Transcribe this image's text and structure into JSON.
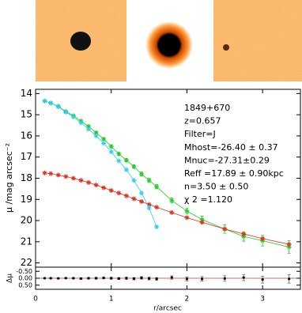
{
  "chart_data": [
    {
      "type": "line",
      "ylabel": "μ /mag arcsec⁻²",
      "annotations": [
        "1849+670",
        "z=0.657",
        "Filter=J",
        "Mhost=-26.40 ± 0.37",
        "Mnuc=-27.31±0.29",
        "Reff =17.89 ± 0.90kpc",
        "n=3.50 ± 0.50",
        "χ 2 =1.120"
      ],
      "xlim": [
        0,
        3.5
      ],
      "ylim": [
        22.2,
        13.8
      ],
      "yticks": [
        14,
        15,
        16,
        17,
        18,
        19,
        20,
        21,
        22
      ],
      "x": [
        0.12,
        0.2,
        0.3,
        0.4,
        0.5,
        0.6,
        0.7,
        0.8,
        0.9,
        1.0,
        1.1,
        1.2,
        1.3,
        1.4,
        1.5,
        1.6,
        1.8,
        2.0,
        2.2,
        2.5,
        2.75,
        3.0,
        3.35
      ],
      "series": [
        {
          "color": "#22cc22",
          "marker": true,
          "values": [
            14.35,
            14.45,
            14.6,
            14.85,
            15.05,
            15.3,
            15.55,
            15.85,
            16.15,
            16.5,
            16.85,
            17.15,
            17.45,
            17.8,
            18.1,
            18.4,
            19.05,
            19.55,
            19.95,
            20.4,
            20.75,
            20.95,
            21.25
          ],
          "errors": [
            0.03,
            0.03,
            0.03,
            0.04,
            0.04,
            0.05,
            0.05,
            0.06,
            0.06,
            0.07,
            0.07,
            0.08,
            0.08,
            0.09,
            0.1,
            0.1,
            0.12,
            0.14,
            0.16,
            0.2,
            0.22,
            0.25,
            0.3
          ]
        },
        {
          "color": "#dd3322",
          "marker": true,
          "values": [
            17.75,
            17.78,
            17.85,
            17.92,
            18.0,
            18.1,
            18.2,
            18.32,
            18.45,
            18.58,
            18.7,
            18.83,
            18.97,
            19.1,
            19.24,
            19.37,
            19.62,
            19.86,
            20.08,
            20.4,
            20.63,
            20.85,
            21.12
          ]
        },
        {
          "color": "#33ccee",
          "marker": true,
          "values": [
            14.35,
            14.45,
            14.62,
            14.88,
            15.1,
            15.38,
            15.68,
            16.0,
            16.35,
            16.75,
            17.18,
            17.6,
            18.1,
            18.7,
            19.4,
            20.3,
            null,
            null,
            null,
            null,
            null,
            null,
            null
          ]
        }
      ]
    },
    {
      "type": "scatter",
      "ylabel": "Δμ",
      "xlabel": "r/arcsec",
      "xlim": [
        0,
        3.5
      ],
      "xticks": [
        0,
        1,
        2,
        3
      ],
      "ylim": [
        0.8,
        -0.8
      ],
      "yticks": [
        {
          "value": -0.5,
          "label": "-0.50"
        },
        {
          "value": 0,
          "label": "0.00"
        },
        {
          "value": 0.5,
          "label": "0.50"
        }
      ],
      "color": "#000000",
      "x": [
        0.12,
        0.2,
        0.3,
        0.4,
        0.5,
        0.6,
        0.7,
        0.8,
        0.9,
        1.0,
        1.1,
        1.2,
        1.3,
        1.4,
        1.5,
        1.6,
        1.8,
        2.0,
        2.2,
        2.5,
        2.75,
        3.0,
        3.35
      ],
      "values": [
        0.0,
        0.0,
        0.01,
        -0.01,
        0.0,
        0.02,
        0.0,
        0.0,
        -0.02,
        0.0,
        0.02,
        0.0,
        0.03,
        -0.02,
        0.02,
        0.05,
        -0.05,
        0.05,
        0.05,
        0.02,
        -0.05,
        0.1,
        0.05
      ],
      "errors": [
        0.03,
        0.03,
        0.03,
        0.04,
        0.04,
        0.05,
        0.05,
        0.06,
        0.06,
        0.07,
        0.07,
        0.08,
        0.08,
        0.09,
        0.1,
        0.1,
        0.12,
        0.14,
        0.16,
        0.2,
        0.22,
        0.25,
        0.3
      ]
    }
  ]
}
